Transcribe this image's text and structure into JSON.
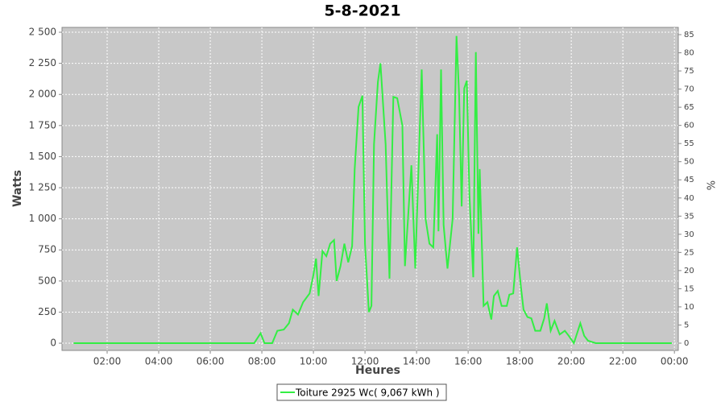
{
  "chart_data": {
    "type": "line",
    "title": "5-8-2021",
    "x_label": "Heures",
    "y_label": "Watts",
    "y2_label": "%",
    "x": [
      0.7,
      7.5,
      7.7,
      7.95,
      8.1,
      8.4,
      8.6,
      8.85,
      9.05,
      9.2,
      9.4,
      9.6,
      9.85,
      10.0,
      10.1,
      10.2,
      10.35,
      10.5,
      10.65,
      10.8,
      10.9,
      11.05,
      11.2,
      11.35,
      11.5,
      11.6,
      11.75,
      11.9,
      12.0,
      12.15,
      12.25,
      12.35,
      12.5,
      12.6,
      12.8,
      12.95,
      13.1,
      13.25,
      13.45,
      13.55,
      13.8,
      13.95,
      14.2,
      14.35,
      14.5,
      14.65,
      14.8,
      14.85,
      14.95,
      15.05,
      15.2,
      15.4,
      15.55,
      15.65,
      15.75,
      15.85,
      15.95,
      16.05,
      16.2,
      16.3,
      16.4,
      16.45,
      16.6,
      16.75,
      16.9,
      17.0,
      17.15,
      17.3,
      17.5,
      17.6,
      17.75,
      17.9,
      18.05,
      18.15,
      18.3,
      18.45,
      18.6,
      18.8,
      18.95,
      19.05,
      19.2,
      19.35,
      19.55,
      19.75,
      19.9,
      20.1,
      20.35,
      20.5,
      20.65,
      20.95,
      23.9
    ],
    "series": [
      {
        "name": "Toiture 2925 Wc( 9,067 kWh )",
        "color": "#33ee44",
        "values": [
          0,
          0,
          0,
          80,
          0,
          0,
          100,
          110,
          160,
          270,
          230,
          330,
          400,
          550,
          680,
          380,
          740,
          700,
          800,
          830,
          500,
          620,
          800,
          650,
          780,
          1400,
          1900,
          1990,
          800,
          250,
          300,
          1600,
          2100,
          2250,
          1600,
          520,
          1980,
          1970,
          1750,
          620,
          1430,
          600,
          2200,
          1000,
          800,
          770,
          1680,
          900,
          2200,
          950,
          600,
          1000,
          2470,
          2000,
          1100,
          2050,
          2110,
          1200,
          530,
          2340,
          880,
          1400,
          300,
          330,
          190,
          380,
          420,
          300,
          300,
          390,
          400,
          770,
          450,
          270,
          210,
          200,
          100,
          100,
          200,
          320,
          100,
          180,
          70,
          100,
          60,
          0,
          160,
          60,
          20,
          0,
          0
        ]
      }
    ],
    "xlim": [
      0.25,
      24.15
    ],
    "xticks": [
      {
        "value": 2,
        "label": "02:00"
      },
      {
        "value": 4,
        "label": "04:00"
      },
      {
        "value": 6,
        "label": "06:00"
      },
      {
        "value": 8,
        "label": "08:00"
      },
      {
        "value": 10,
        "label": "10:00"
      },
      {
        "value": 12,
        "label": "12:00"
      },
      {
        "value": 14,
        "label": "14:00"
      },
      {
        "value": 16,
        "label": "16:00"
      },
      {
        "value": 18,
        "label": "18:00"
      },
      {
        "value": 20,
        "label": "20:00"
      },
      {
        "value": 22,
        "label": "22:00"
      },
      {
        "value": 24,
        "label": "00:00"
      }
    ],
    "ylim": [
      -58,
      2539
    ],
    "yticks": [
      0,
      250,
      500,
      750,
      {
        "value": 1000,
        "label": "1 000"
      },
      {
        "value": 1250,
        "label": "1 250"
      },
      {
        "value": 1500,
        "label": "1 500"
      },
      {
        "value": 1750,
        "label": "1 750"
      },
      {
        "value": 2000,
        "label": "2 000"
      },
      {
        "value": 2250,
        "label": "2 250"
      },
      {
        "value": 2500,
        "label": "2 500"
      }
    ],
    "y2lim": [
      -2,
      87
    ],
    "y2ticks": [
      0,
      5,
      10,
      15,
      20,
      25,
      30,
      35,
      40,
      45,
      50,
      55,
      60,
      65,
      70,
      75,
      80,
      85
    ],
    "grid": true,
    "legend": "bottom"
  }
}
